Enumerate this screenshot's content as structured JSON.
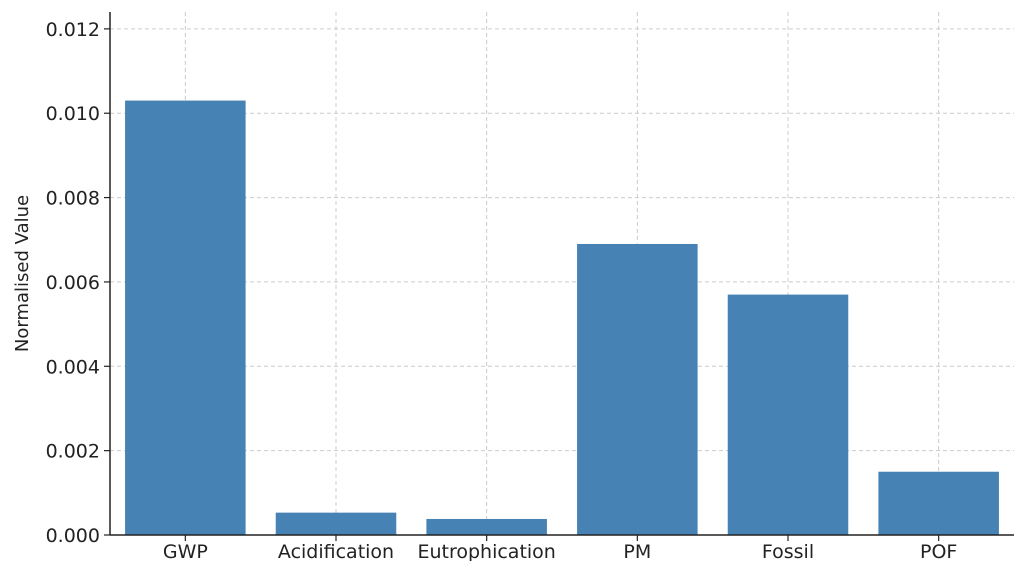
{
  "chart_data": {
    "type": "bar",
    "categories": [
      "GWP",
      "Acidification",
      "Eutrophication",
      "PM",
      "Fossil",
      "POF"
    ],
    "values": [
      0.0103,
      0.00053,
      0.00038,
      0.0069,
      0.0057,
      0.0015
    ],
    "title": "",
    "xlabel": "",
    "ylabel": "Normalised Value",
    "ylim": [
      0,
      0.0124
    ],
    "yticks": [
      "0.000",
      "0.002",
      "0.004",
      "0.006",
      "0.008",
      "0.010",
      "0.012"
    ],
    "bar_color": "#4682b4",
    "grid": true,
    "legend": false
  }
}
